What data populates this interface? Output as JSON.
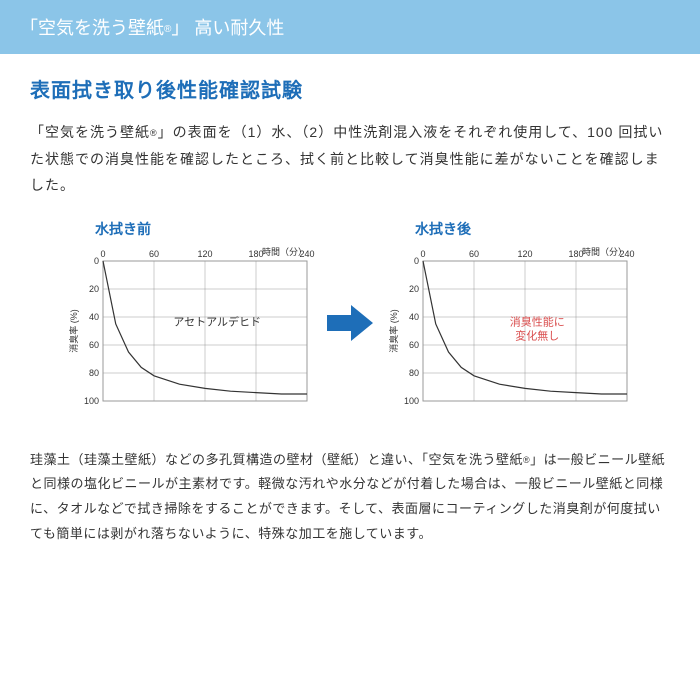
{
  "header": {
    "prefix": "「空気を洗う壁紙",
    "reg": "®",
    "suffix": "」 高い耐久性"
  },
  "section_title": "表面拭き取り後性能確認試験",
  "intro": {
    "p1a": "「空気を洗う壁紙",
    "p1b": "」の表面を（1）水、（2）中性洗剤混入液をそれぞれ使用して、100 回拭いた状態での消臭性能を確認したところ、拭く前と比較して消臭性能に差がないことを確認しました。"
  },
  "chart_before": {
    "title": "水拭き前",
    "type": "line",
    "xlabel": "時間（分）",
    "ylabel": "消臭率 (%)",
    "xticks": [
      0,
      60,
      120,
      180,
      240
    ],
    "yticks": [
      0,
      20,
      40,
      60,
      80,
      100
    ],
    "line_color": "#333333",
    "line_width": 1.2,
    "grid_color": "#999999",
    "bg_color": "#ffffff",
    "text_color": "#333333",
    "axis_label_fontsize": 9,
    "tick_fontsize": 9,
    "annotation": "アセトアルデヒド",
    "annotation_color": "#333333",
    "data_x": [
      0,
      15,
      30,
      45,
      60,
      90,
      120,
      150,
      180,
      210,
      240
    ],
    "data_y": [
      0,
      45,
      65,
      76,
      82,
      88,
      91,
      93,
      94,
      95,
      95
    ]
  },
  "chart_after": {
    "title": "水拭き後",
    "type": "line",
    "xlabel": "時間（分）",
    "ylabel": "消臭率 (%)",
    "xticks": [
      0,
      60,
      120,
      180,
      240
    ],
    "yticks": [
      0,
      20,
      40,
      60,
      80,
      100
    ],
    "line_color": "#333333",
    "line_width": 1.2,
    "grid_color": "#999999",
    "bg_color": "#ffffff",
    "text_color": "#333333",
    "axis_label_fontsize": 9,
    "tick_fontsize": 9,
    "annotation": "消臭性能に\n変化無し",
    "annotation_color": "#d94c4c",
    "data_x": [
      0,
      15,
      30,
      45,
      60,
      90,
      120,
      150,
      180,
      210,
      240
    ],
    "data_y": [
      0,
      45,
      65,
      76,
      82,
      88,
      91,
      93,
      94,
      95,
      95
    ]
  },
  "arrow_color": "#1e6eb8",
  "footer": {
    "p1a": "珪藻土（珪藻土壁紙）などの多孔質構造の壁材（壁紙）と違い、「空気を洗う壁紙",
    "p1b": "」は一般ビニール壁紙と同様の塩化ビニールが主素材です。軽微な汚れや水分などが付着した場合は、一般ビニール壁紙と同様に、タオルなどで拭き掃除をすることができます。そして、表面層にコーティングした消臭剤が何度拭いても簡単には剥がれ落ちないように、特殊な加工を施しています。"
  }
}
